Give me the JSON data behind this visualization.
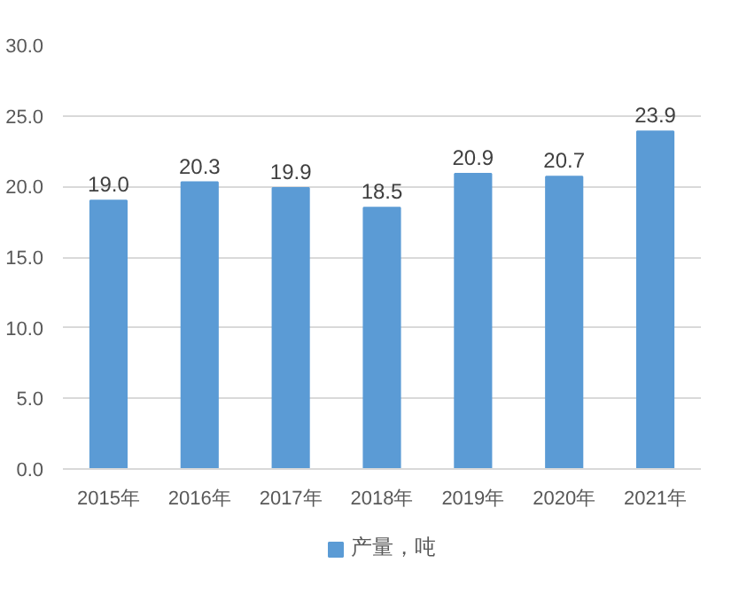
{
  "chart_data": {
    "type": "bar",
    "categories": [
      "2015年",
      "2016年",
      "2017年",
      "2018年",
      "2019年",
      "2020年",
      "2021年"
    ],
    "series": [
      {
        "name": "产量，吨",
        "color": "#5b9bd5",
        "values": [
          19.0,
          20.3,
          19.9,
          18.5,
          20.9,
          20.7,
          23.9
        ],
        "value_labels": [
          "19.0",
          "20.3",
          "19.9",
          "18.5",
          "20.9",
          "20.7",
          "23.9"
        ]
      }
    ],
    "ylim": [
      0,
      30
    ],
    "yticks": [
      {
        "value": 0,
        "label": "0.0"
      },
      {
        "value": 5,
        "label": "5.0"
      },
      {
        "value": 10,
        "label": "10.0"
      },
      {
        "value": 15,
        "label": "15.0"
      },
      {
        "value": 20,
        "label": "20.0"
      },
      {
        "value": 25,
        "label": "25.0"
      },
      {
        "value": 30,
        "label": "30.0"
      }
    ],
    "grid": "y",
    "legend": "bottom"
  }
}
